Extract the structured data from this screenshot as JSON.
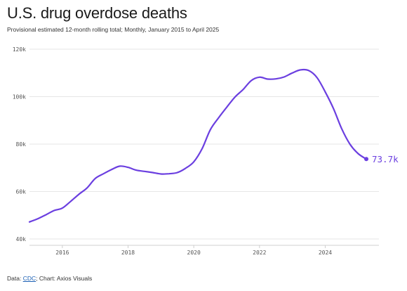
{
  "title": "U.S. drug overdose deaths",
  "subtitle": "Provisional estimated 12-month rolling total; Monthly, January 2015 to April 2025",
  "source": {
    "prefix": "Data: ",
    "link_text": "CDC",
    "suffix": "; Chart: Axios Visuals"
  },
  "colors": {
    "line": "#6b3fe0",
    "grid": "#e6e6e6"
  },
  "chart_data": {
    "type": "line",
    "title": "U.S. drug overdose deaths",
    "ylim": [
      40000,
      120000
    ],
    "xlim": [
      "2015-01",
      "2025-04"
    ],
    "y_ticks": [
      40000,
      60000,
      80000,
      100000,
      120000
    ],
    "y_tick_labels": [
      "40k",
      "60k",
      "80k",
      "100k",
      "120k"
    ],
    "x_ticks": [
      "2016-01",
      "2018-01",
      "2020-01",
      "2022-01",
      "2024-01"
    ],
    "x_tick_labels": [
      "2016",
      "2018",
      "2020",
      "2022",
      "2024"
    ],
    "grid": true,
    "end_label": "73.7k",
    "series": [
      {
        "points": [
          [
            "2015-01",
            47200
          ],
          [
            "2015-04",
            48500
          ],
          [
            "2015-07",
            50200
          ],
          [
            "2015-10",
            52000
          ],
          [
            "2016-01",
            53000
          ],
          [
            "2016-04",
            55800
          ],
          [
            "2016-07",
            58800
          ],
          [
            "2016-10",
            61500
          ],
          [
            "2017-01",
            65500
          ],
          [
            "2017-04",
            67500
          ],
          [
            "2017-07",
            69300
          ],
          [
            "2017-10",
            70700
          ],
          [
            "2018-01",
            70200
          ],
          [
            "2018-04",
            69000
          ],
          [
            "2018-07",
            68500
          ],
          [
            "2018-10",
            68000
          ],
          [
            "2019-01",
            67400
          ],
          [
            "2019-04",
            67500
          ],
          [
            "2019-07",
            68000
          ],
          [
            "2019-10",
            69800
          ],
          [
            "2020-01",
            72500
          ],
          [
            "2020-04",
            78000
          ],
          [
            "2020-07",
            86000
          ],
          [
            "2020-10",
            91000
          ],
          [
            "2021-01",
            95500
          ],
          [
            "2021-04",
            99800
          ],
          [
            "2021-07",
            103000
          ],
          [
            "2021-10",
            106800
          ],
          [
            "2022-01",
            108200
          ],
          [
            "2022-04",
            107400
          ],
          [
            "2022-07",
            107500
          ],
          [
            "2022-10",
            108300
          ],
          [
            "2023-01",
            110000
          ],
          [
            "2023-04",
            111300
          ],
          [
            "2023-07",
            111000
          ],
          [
            "2023-10",
            108000
          ],
          [
            "2024-01",
            102000
          ],
          [
            "2024-04",
            95000
          ],
          [
            "2024-07",
            86500
          ],
          [
            "2024-10",
            80000
          ],
          [
            "2025-01",
            76000
          ],
          [
            "2025-04",
            73700
          ]
        ]
      }
    ]
  }
}
